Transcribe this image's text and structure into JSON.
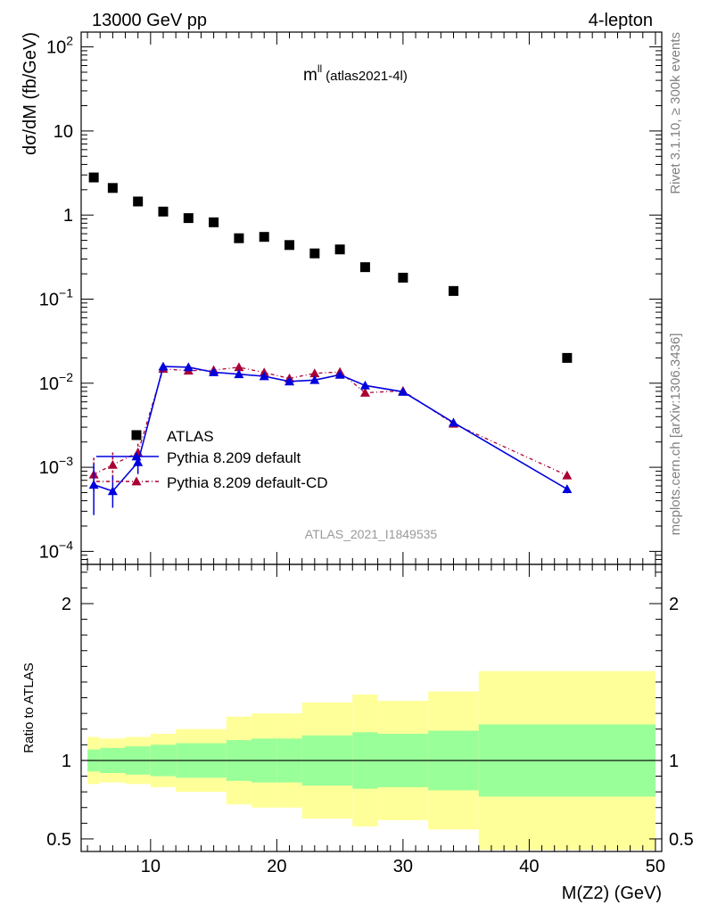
{
  "header": {
    "energy_label": "13000 GeV pp",
    "process_label": "4-lepton"
  },
  "plot_title": {
    "main": "m",
    "sup": "ll",
    "sub": "(atlas2021-4l)"
  },
  "analysis_id": "ATLAS_2021_I1849535",
  "side_labels": {
    "rivet": "Rivet 3.1.10, ≥ 300k events",
    "mcplots": "mcplots.cern.ch [arXiv:1306.3436]"
  },
  "colors": {
    "data": "#000000",
    "pythia_default": "#0000dd",
    "pythia_cd": "#aa0033",
    "band_inner": "#99ff99",
    "band_outer": "#ffff99"
  },
  "chart_data": [
    {
      "type": "scatter",
      "panel": "main",
      "scale": "log",
      "ylabel": "dσ/dM (fb/GeV)",
      "xlabel": "M(Z2) (GeV)",
      "xlim": [
        4.5,
        50.5
      ],
      "ylim": [
        7e-05,
        150
      ],
      "y_ticks": [
        {
          "value": 100,
          "mantissa": "10",
          "exp": "2"
        },
        {
          "value": 10,
          "mantissa": "10",
          "exp": ""
        },
        {
          "value": 1,
          "mantissa": "1",
          "exp": ""
        },
        {
          "value": 0.1,
          "mantissa": "10",
          "exp": "−1"
        },
        {
          "value": 0.01,
          "mantissa": "10",
          "exp": "−2"
        },
        {
          "value": 0.001,
          "mantissa": "10",
          "exp": "−3"
        },
        {
          "value": 0.0001,
          "mantissa": "10",
          "exp": "−4"
        }
      ],
      "x_ticks": [
        10,
        20,
        30,
        40,
        50
      ],
      "series": [
        {
          "name": "ATLAS",
          "style": "square",
          "x": [
            5.5,
            7,
            9,
            11,
            13,
            15,
            17,
            19,
            21,
            23,
            25,
            27,
            30,
            34,
            43
          ],
          "values": [
            2.8,
            2.1,
            1.45,
            1.1,
            0.92,
            0.82,
            0.53,
            0.55,
            0.44,
            0.35,
            0.39,
            0.24,
            0.18,
            0.125,
            0.02
          ]
        },
        {
          "name": "Pythia 8.209 default",
          "style": "triangle-solid",
          "x": [
            5.5,
            7,
            9,
            11,
            13,
            15,
            17,
            19,
            21,
            23,
            25,
            27,
            30,
            34,
            43
          ],
          "values": [
            0.00062,
            0.00052,
            0.00115,
            0.0158,
            0.0155,
            0.0135,
            0.0128,
            0.0121,
            0.0105,
            0.0109,
            0.0126,
            0.0094,
            0.0079,
            0.0034,
            0.00055
          ],
          "err_lo": [
            0.00027,
            0.00033,
            0.00083,
            0.015,
            0.0148,
            0.0129,
            0.0122,
            0.0115,
            0.0099,
            0.0103,
            0.012,
            0.0089,
            0.0075,
            0.0031,
            0.00049
          ],
          "err_hi": [
            0.0011,
            0.00078,
            0.0014,
            0.0166,
            0.0162,
            0.0141,
            0.0134,
            0.0127,
            0.0111,
            0.0115,
            0.0132,
            0.0099,
            0.0083,
            0.0037,
            0.00061
          ]
        },
        {
          "name": "Pythia 8.209 default-CD",
          "style": "triangle-dashed",
          "x": [
            5.5,
            7,
            9,
            11,
            13,
            15,
            17,
            19,
            21,
            23,
            25,
            27,
            30,
            34,
            43
          ],
          "values": [
            0.00082,
            0.00107,
            0.0015,
            0.0148,
            0.0141,
            0.0143,
            0.0155,
            0.0134,
            0.0114,
            0.0131,
            0.0136,
            0.0077,
            0.0081,
            0.0033,
            0.0008
          ],
          "err_lo": [
            0.00052,
            0.00075,
            0.00118,
            0.0141,
            0.0134,
            0.0136,
            0.0148,
            0.0127,
            0.0107,
            0.0124,
            0.0129,
            0.0072,
            0.0077,
            0.003,
            0.00072
          ],
          "err_hi": [
            0.0013,
            0.0015,
            0.0019,
            0.0155,
            0.0148,
            0.015,
            0.0162,
            0.0141,
            0.0121,
            0.0138,
            0.0143,
            0.0082,
            0.0085,
            0.0036,
            0.00088
          ]
        }
      ],
      "legend": [
        "ATLAS",
        "Pythia 8.209 default",
        "Pythia 8.209 default-CD"
      ]
    },
    {
      "type": "area",
      "panel": "ratio",
      "ylabel": "Ratio to ATLAS",
      "xlabel": "M(Z2) (GeV)",
      "xlim": [
        4.5,
        50.5
      ],
      "ylim": [
        0.42,
        2.25
      ],
      "y_ticks": [
        0.5,
        1,
        2
      ],
      "y_tick_labels": [
        "0.5",
        "1",
        "2"
      ],
      "x_ticks": [
        10,
        20,
        30,
        40,
        50
      ],
      "x_tick_labels": [
        "10",
        "20",
        "30",
        "40",
        "50"
      ],
      "reference_line": 1,
      "bins": [
        {
          "lo": 5,
          "hi": 6,
          "inner": [
            0.93,
            1.07
          ],
          "outer": [
            0.85,
            1.15
          ]
        },
        {
          "lo": 6,
          "hi": 8,
          "inner": [
            0.92,
            1.08
          ],
          "outer": [
            0.86,
            1.14
          ]
        },
        {
          "lo": 8,
          "hi": 10,
          "inner": [
            0.91,
            1.09
          ],
          "outer": [
            0.85,
            1.15
          ]
        },
        {
          "lo": 10,
          "hi": 12,
          "inner": [
            0.9,
            1.1
          ],
          "outer": [
            0.83,
            1.17
          ]
        },
        {
          "lo": 12,
          "hi": 16,
          "inner": [
            0.89,
            1.11
          ],
          "outer": [
            0.8,
            1.2
          ]
        },
        {
          "lo": 16,
          "hi": 18,
          "inner": [
            0.87,
            1.13
          ],
          "outer": [
            0.72,
            1.28
          ]
        },
        {
          "lo": 18,
          "hi": 20,
          "inner": [
            0.86,
            1.14
          ],
          "outer": [
            0.7,
            1.3
          ]
        },
        {
          "lo": 20,
          "hi": 22,
          "inner": [
            0.86,
            1.14
          ],
          "outer": [
            0.7,
            1.3
          ]
        },
        {
          "lo": 22,
          "hi": 26,
          "inner": [
            0.84,
            1.16
          ],
          "outer": [
            0.63,
            1.37
          ]
        },
        {
          "lo": 26,
          "hi": 28,
          "inner": [
            0.82,
            1.18
          ],
          "outer": [
            0.58,
            1.42
          ]
        },
        {
          "lo": 28,
          "hi": 32,
          "inner": [
            0.83,
            1.17
          ],
          "outer": [
            0.62,
            1.38
          ]
        },
        {
          "lo": 32,
          "hi": 36,
          "inner": [
            0.81,
            1.19
          ],
          "outer": [
            0.56,
            1.44
          ]
        },
        {
          "lo": 36,
          "hi": 50,
          "inner": [
            0.77,
            1.23
          ],
          "outer": [
            0.43,
            1.57
          ]
        }
      ]
    }
  ]
}
